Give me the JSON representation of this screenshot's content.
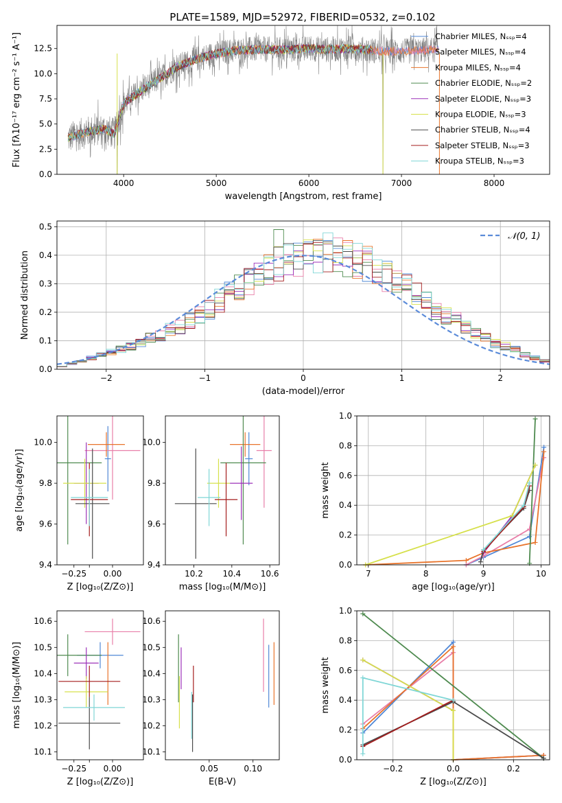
{
  "figure": {
    "title": "PLATE=1589, MJD=52972, FIBERID=0532, z=0.102"
  },
  "colors": {
    "Chabrier MILES": "#4f87d6",
    "Salpeter MILES": "#e87ea8",
    "Kroupa MILES": "#e8732a",
    "Chabrier ELODIE": "#4e8a4f",
    "Salpeter ELODIE": "#9b30b8",
    "Kroupa ELODIE": "#d6e04a",
    "Chabrier STELIB": "#4a4a4a",
    "Salpeter STELIB": "#a41c1c",
    "Kroupa STELIB": "#7fd6d6",
    "data": "#808080",
    "normal": "#5b8bd9"
  },
  "chart_data": [
    {
      "id": "spectrum",
      "type": "line",
      "title": "PLATE=1589, MJD=52972, FIBERID=0532, z=0.102",
      "xlabel": "wavelength [Angstrom, rest frame]",
      "ylabel": "Flux [fλ10⁻¹⁷ erg cm⁻² s⁻¹ A⁻¹]",
      "xlim": [
        3280,
        8600
      ],
      "ylim": [
        0,
        14.8
      ],
      "xticks": [
        4000,
        5000,
        6000,
        7000,
        8000
      ],
      "yticks": [
        0.0,
        2.5,
        5.0,
        7.5,
        10.0,
        12.5
      ],
      "legend_position": "upper right",
      "legend": [
        "Chabrier MILES, N_SSP=4",
        "Salpeter MILES, N_SSP=4",
        "Kroupa MILES, N_SSP=4",
        "Chabrier ELODIE, N_SSP=2",
        "Salpeter ELODIE, N_SSP=3",
        "Kroupa ELODIE, N_SSP=3",
        "Chabrier STELIB, N_SSP=4",
        "Salpeter STELIB, N_SSP=3",
        "Kroupa STELIB, N_SSP=3"
      ],
      "continuum_x": [
        3400,
        3600,
        3800,
        3900,
        4000,
        4200,
        4400,
        4600,
        4800,
        5000,
        5200,
        5400,
        5600,
        5800,
        6000,
        6200,
        6400,
        6600,
        6800,
        7000,
        7200,
        7400
      ],
      "continuum_y": [
        3.6,
        4.2,
        4.5,
        4.0,
        7.0,
        8.4,
        9.6,
        10.8,
        11.5,
        12.0,
        12.3,
        12.4,
        12.4,
        12.4,
        12.5,
        12.4,
        12.5,
        12.4,
        12.2,
        12.2,
        12.3,
        12.4
      ]
    },
    {
      "id": "residuals",
      "type": "histogram",
      "xlabel": "(data-model)/error",
      "ylabel": "Normed distribution",
      "xlim": [
        -2.5,
        2.5
      ],
      "ylim": [
        0,
        0.52
      ],
      "xticks": [
        -2,
        -1,
        0,
        1,
        2
      ],
      "yticks": [
        0.0,
        0.1,
        0.2,
        0.3,
        0.4,
        0.5
      ],
      "grid": true,
      "legend": [
        "𝒩(0, 1)"
      ],
      "legend_position": "upper right",
      "bin_width": 0.1,
      "bin_start": -2.5,
      "mean_hist": [
        0.01,
        0.02,
        0.03,
        0.04,
        0.05,
        0.06,
        0.07,
        0.08,
        0.09,
        0.11,
        0.12,
        0.14,
        0.15,
        0.17,
        0.19,
        0.21,
        0.24,
        0.27,
        0.29,
        0.31,
        0.33,
        0.35,
        0.37,
        0.38,
        0.39,
        0.4,
        0.4,
        0.41,
        0.4,
        0.39,
        0.38,
        0.37,
        0.35,
        0.33,
        0.31,
        0.29,
        0.27,
        0.24,
        0.21,
        0.19,
        0.17,
        0.15,
        0.13,
        0.11,
        0.09,
        0.08,
        0.07,
        0.05,
        0.04,
        0.03
      ]
    },
    {
      "id": "age-vs-Z",
      "type": "scatter",
      "xlabel": "Z [log₁₀(Z/Z⊙)]",
      "ylabel": "age  [log₁₀(age/yr)]",
      "xlim": [
        -0.36,
        0.2
      ],
      "ylim": [
        9.4,
        10.13
      ],
      "xticks": [
        -0.25,
        -0.15,
        0.0
      ],
      "xticklabels": [
        "−0.25",
        "",
        "0.00"
      ],
      "yticks": [
        9.4,
        9.6,
        9.8,
        10.0
      ],
      "points": [
        {
          "model": "Chabrier MILES",
          "x": -0.03,
          "y": 9.92,
          "xerr": 0.02,
          "yerr": 0.16
        },
        {
          "model": "Salpeter MILES",
          "x": 0.0,
          "y": 9.96,
          "xerr": 0.18,
          "yerr": 0.24
        },
        {
          "model": "Kroupa MILES",
          "x": -0.04,
          "y": 9.99,
          "xerr": 0.12,
          "yerr": 0.06
        },
        {
          "model": "Chabrier ELODIE",
          "x": -0.29,
          "y": 9.9,
          "xerr": 0.22,
          "yerr": 0.4
        },
        {
          "model": "Salpeter ELODIE",
          "x": -0.17,
          "y": 9.8,
          "xerr": 0.08,
          "yerr": 0.2
        },
        {
          "model": "Kroupa ELODIE",
          "x": -0.18,
          "y": 9.8,
          "xerr": 0.14,
          "yerr": 0.12
        },
        {
          "model": "Chabrier STELIB",
          "x": -0.13,
          "y": 9.7,
          "xerr": 0.11,
          "yerr": 0.27
        },
        {
          "model": "Salpeter STELIB",
          "x": -0.15,
          "y": 9.72,
          "xerr": 0.12,
          "yerr": 0.18
        },
        {
          "model": "Kroupa STELIB",
          "x": -0.15,
          "y": 9.73,
          "xerr": 0.12,
          "yerr": 0.14
        }
      ]
    },
    {
      "id": "age-vs-mass",
      "type": "scatter",
      "xlabel": "mass [log₁₀(M/M⊙)]",
      "ylabel": "",
      "xlim": [
        10.05,
        10.65
      ],
      "ylim": [
        9.4,
        10.13
      ],
      "xticks": [
        10.2,
        10.4,
        10.6
      ],
      "yticks": [
        9.4,
        9.6,
        9.8,
        10.0
      ],
      "points": [
        {
          "model": "Chabrier MILES",
          "x": 10.49,
          "y": 9.92,
          "xerr": 0.02,
          "yerr": 0.13
        },
        {
          "model": "Salpeter MILES",
          "x": 10.57,
          "y": 9.96,
          "xerr": 0.04,
          "yerr": 0.28
        },
        {
          "model": "Kroupa MILES",
          "x": 10.47,
          "y": 9.99,
          "xerr": 0.08,
          "yerr": 0.06
        },
        {
          "model": "Chabrier ELODIE",
          "x": 10.46,
          "y": 9.9,
          "xerr": 0.12,
          "yerr": 0.4
        },
        {
          "model": "Salpeter ELODIE",
          "x": 10.45,
          "y": 9.8,
          "xerr": 0.06,
          "yerr": 0.18
        },
        {
          "model": "Kroupa ELODIE",
          "x": 10.33,
          "y": 9.8,
          "xerr": 0.06,
          "yerr": 0.12
        },
        {
          "model": "Chabrier STELIB",
          "x": 10.21,
          "y": 9.7,
          "xerr": 0.11,
          "yerr": 0.27
        },
        {
          "model": "Salpeter STELIB",
          "x": 10.37,
          "y": 9.72,
          "xerr": 0.06,
          "yerr": 0.18
        },
        {
          "model": "Kroupa STELIB",
          "x": 10.28,
          "y": 9.73,
          "xerr": 0.06,
          "yerr": 0.14
        }
      ]
    },
    {
      "id": "weight-vs-age",
      "type": "line",
      "xlabel": "age  [log₁₀(age/yr)]",
      "ylabel": "mass weight",
      "xlim": [
        6.8,
        10.15
      ],
      "ylim": [
        0,
        1.0
      ],
      "xticks": [
        7,
        8,
        9,
        10
      ],
      "yticks": [
        0.0,
        0.2,
        0.4,
        0.6,
        0.8,
        1.0
      ],
      "grid": true,
      "series": [
        {
          "model": "Chabrier MILES",
          "x": [
            8.7,
            9.0,
            9.8,
            10.05
          ],
          "y": [
            0.0,
            0.05,
            0.19,
            0.79
          ]
        },
        {
          "model": "Salpeter MILES",
          "x": [
            8.7,
            9.0,
            9.8,
            10.05
          ],
          "y": [
            0.0,
            0.06,
            0.24,
            0.72
          ]
        },
        {
          "model": "Kroupa MILES",
          "x": [
            6.95,
            8.7,
            9.0,
            9.9,
            10.05
          ],
          "y": [
            0.0,
            0.03,
            0.08,
            0.15,
            0.76
          ]
        },
        {
          "model": "Chabrier ELODIE",
          "x": [
            9.8,
            9.9
          ],
          "y": [
            0.01,
            0.98
          ]
        },
        {
          "model": "Salpeter ELODIE",
          "x": [
            9.0,
            9.5,
            9.9
          ],
          "y": [
            0.08,
            0.33,
            0.67
          ]
        },
        {
          "model": "Kroupa ELODIE",
          "x": [
            6.95,
            9.5,
            9.9
          ],
          "y": [
            0.0,
            0.33,
            0.67
          ]
        },
        {
          "model": "Chabrier STELIB",
          "x": [
            8.95,
            9.0,
            9.7,
            9.8
          ],
          "y": [
            0.02,
            0.1,
            0.38,
            0.5
          ]
        },
        {
          "model": "Salpeter STELIB",
          "x": [
            9.0,
            9.7,
            9.8
          ],
          "y": [
            0.09,
            0.39,
            0.53
          ]
        },
        {
          "model": "Kroupa STELIB",
          "x": [
            9.0,
            9.7,
            9.8
          ],
          "y": [
            0.1,
            0.4,
            0.55
          ]
        }
      ]
    },
    {
      "id": "mass-vs-Z",
      "type": "scatter",
      "xlabel": "Z [log₁₀(Z/Z⊙)]",
      "ylabel": "mass [log₁₀(M/M⊙)]",
      "xlim": [
        -0.36,
        0.2
      ],
      "ylim": [
        10.07,
        10.64
      ],
      "xticks": [
        -0.25,
        -0.15,
        0.0
      ],
      "xticklabels": [
        "−0.25",
        "",
        "0.00"
      ],
      "yticks": [
        10.1,
        10.2,
        10.3,
        10.4,
        10.5,
        10.6
      ],
      "points": [
        {
          "model": "Chabrier MILES",
          "x": -0.08,
          "y": 10.47,
          "xerr": 0.15,
          "yerr": 0.05
        },
        {
          "model": "Salpeter MILES",
          "x": 0.0,
          "y": 10.56,
          "xerr": 0.18,
          "yerr": 0.05
        },
        {
          "model": "Kroupa MILES",
          "x": -0.03,
          "y": 10.4,
          "xerr": 0.0,
          "yerr": 0.12
        },
        {
          "model": "Chabrier ELODIE",
          "x": -0.29,
          "y": 10.47,
          "xerr": 0.22,
          "yerr": 0.08
        },
        {
          "model": "Salpeter ELODIE",
          "x": -0.17,
          "y": 10.44,
          "xerr": 0.08,
          "yerr": 0.06
        },
        {
          "model": "Kroupa ELODIE",
          "x": -0.17,
          "y": 10.33,
          "xerr": 0.14,
          "yerr": 0.06
        },
        {
          "model": "Chabrier STELIB",
          "x": -0.15,
          "y": 10.21,
          "xerr": 0.2,
          "yerr": 0.1
        },
        {
          "model": "Salpeter STELIB",
          "x": -0.15,
          "y": 10.37,
          "xerr": 0.2,
          "yerr": 0.06
        },
        {
          "model": "Kroupa STELIB",
          "x": -0.12,
          "y": 10.27,
          "xerr": 0.2,
          "yerr": 0.05
        }
      ]
    },
    {
      "id": "mass-vs-ebv",
      "type": "scatter",
      "xlabel": "E(B-V)",
      "ylabel": "",
      "xlim": [
        0.0,
        0.13
      ],
      "ylim": [
        10.07,
        10.64
      ],
      "xticks": [
        0.05,
        0.1
      ],
      "xticklabels": [
        "0.05",
        "0.10"
      ],
      "yticks": [
        10.1,
        10.2,
        10.3,
        10.4,
        10.5,
        10.6
      ],
      "points": [
        {
          "model": "Chabrier MILES",
          "x": 0.118,
          "y": 10.39,
          "yerr": 0.12
        },
        {
          "model": "Salpeter MILES",
          "x": 0.112,
          "y": 10.47,
          "yerr": 0.14
        },
        {
          "model": "Kroupa MILES",
          "x": 0.124,
          "y": 10.4,
          "yerr": 0.12
        },
        {
          "model": "Chabrier ELODIE",
          "x": 0.015,
          "y": 10.42,
          "yerr": 0.13
        },
        {
          "model": "Salpeter ELODIE",
          "x": 0.018,
          "y": 10.42,
          "yerr": 0.08
        },
        {
          "model": "Kroupa ELODIE",
          "x": 0.016,
          "y": 10.29,
          "yerr": 0.1
        },
        {
          "model": "Chabrier STELIB",
          "x": 0.031,
          "y": 10.21,
          "yerr": 0.11
        },
        {
          "model": "Salpeter STELIB",
          "x": 0.032,
          "y": 10.36,
          "yerr": 0.07
        },
        {
          "model": "Kroupa STELIB",
          "x": 0.03,
          "y": 10.24,
          "yerr": 0.09
        }
      ]
    },
    {
      "id": "weight-vs-Z",
      "type": "line",
      "xlabel": "Z [log₁₀(Z/Z⊙)]",
      "ylabel": "mass weight",
      "xlim": [
        -0.32,
        0.32
      ],
      "ylim": [
        0,
        1.0
      ],
      "xticks": [
        -0.2,
        0.0,
        0.2
      ],
      "xticklabels": [
        "−0.2",
        "0.0",
        "0.2"
      ],
      "yticks": [
        0.0,
        0.2,
        0.4,
        0.6,
        0.8,
        1.0
      ],
      "grid": true,
      "series": [
        {
          "model": "Chabrier MILES",
          "x": [
            -0.3,
            0.0,
            0.0,
            0.3
          ],
          "y": [
            0.18,
            0.79,
            0.0,
            0.03
          ]
        },
        {
          "model": "Salpeter MILES",
          "x": [
            -0.3,
            0.0,
            0.0,
            0.3
          ],
          "y": [
            0.24,
            0.72,
            0.0,
            0.03
          ]
        },
        {
          "model": "Kroupa MILES",
          "x": [
            -0.3,
            0.0,
            0.0,
            0.3
          ],
          "y": [
            0.21,
            0.76,
            0.0,
            0.03
          ]
        },
        {
          "model": "Chabrier ELODIE",
          "x": [
            -0.3,
            0.3
          ],
          "y": [
            0.98,
            0.01
          ]
        },
        {
          "model": "Salpeter ELODIE",
          "x": [
            -0.3,
            0.0
          ],
          "y": [
            0.67,
            0.33
          ]
        },
        {
          "model": "Kroupa ELODIE",
          "x": [
            -0.3,
            0.0,
            0.0
          ],
          "y": [
            0.67,
            0.33,
            0.0
          ]
        },
        {
          "model": "Chabrier STELIB",
          "x": [
            -0.3,
            0.0,
            0.3
          ],
          "y": [
            0.1,
            0.39,
            0.01
          ]
        },
        {
          "model": "Salpeter STELIB",
          "x": [
            -0.3,
            0.0
          ],
          "y": [
            0.09,
            0.4
          ]
        },
        {
          "model": "Kroupa STELIB",
          "x": [
            -0.3,
            -0.3,
            0.0
          ],
          "y": [
            0.04,
            0.55,
            0.4
          ]
        }
      ]
    }
  ]
}
